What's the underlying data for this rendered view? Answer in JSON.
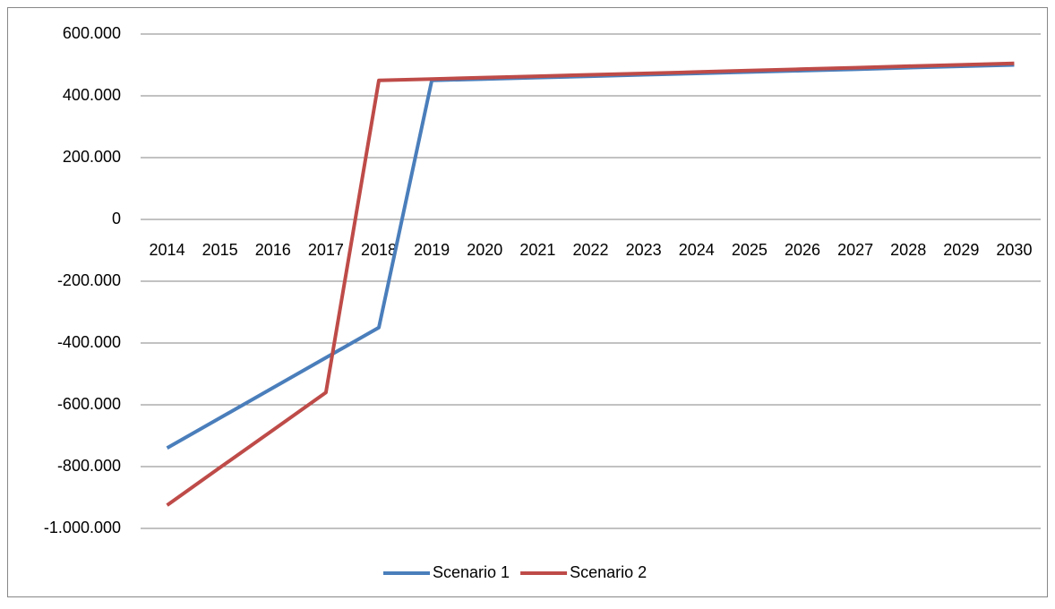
{
  "chart_data": {
    "type": "line",
    "categories": [
      "2014",
      "2015",
      "2016",
      "2017",
      "2018",
      "2019",
      "2020",
      "2021",
      "2022",
      "2023",
      "2024",
      "2025",
      "2026",
      "2027",
      "2028",
      "2029",
      "2030"
    ],
    "series": [
      {
        "name": "Scenario 1",
        "color": "#4a7ebb",
        "values": [
          -740000,
          -642500,
          -545000,
          -447500,
          -350000,
          450000,
          454500,
          459000,
          463500,
          468000,
          472500,
          477000,
          481500,
          486000,
          491000,
          495500,
          500000
        ]
      },
      {
        "name": "Scenario 2",
        "color": "#be4b48",
        "values": [
          -925000,
          -803000,
          -682000,
          -560000,
          450000,
          454500,
          459000,
          463500,
          468000,
          472500,
          477000,
          482000,
          486500,
          491000,
          496000,
          500500,
          505000
        ]
      }
    ],
    "ylim": [
      -1000000,
      600000
    ],
    "yticks": [
      {
        "value": -1000000,
        "label": "-1.000.000"
      },
      {
        "value": -800000,
        "label": "-800.000"
      },
      {
        "value": -600000,
        "label": "-600.000"
      },
      {
        "value": -400000,
        "label": "-400.000"
      },
      {
        "value": -200000,
        "label": "-200.000"
      },
      0,
      {
        "value": 200000,
        "label": "200.000"
      },
      {
        "value": 400000,
        "label": "400.000"
      },
      {
        "value": 600000,
        "label": "600.000"
      }
    ],
    "grid": true,
    "legend": "bottom"
  }
}
